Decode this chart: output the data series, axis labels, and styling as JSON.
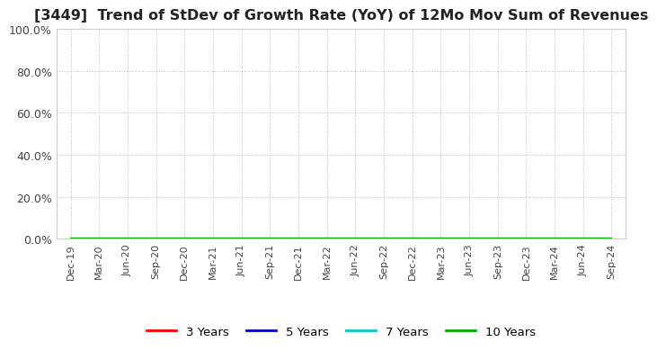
{
  "title": "[3449]  Trend of StDev of Growth Rate (YoY) of 12Mo Mov Sum of Revenues",
  "ylim": [
    0.0,
    1.0
  ],
  "yticks": [
    0.0,
    0.2,
    0.4,
    0.6,
    0.8,
    1.0
  ],
  "ytick_labels": [
    "0.0%",
    "20.0%",
    "40.0%",
    "60.0%",
    "80.0%",
    "100.0%"
  ],
  "xtick_labels": [
    "Dec-19",
    "Mar-20",
    "Jun-20",
    "Sep-20",
    "Dec-20",
    "Mar-21",
    "Jun-21",
    "Sep-21",
    "Dec-21",
    "Mar-22",
    "Jun-22",
    "Sep-22",
    "Dec-22",
    "Mar-23",
    "Jun-23",
    "Sep-23",
    "Dec-23",
    "Mar-24",
    "Jun-24",
    "Sep-24"
  ],
  "legend_labels": [
    "3 Years",
    "5 Years",
    "7 Years",
    "10 Years"
  ],
  "legend_colors": [
    "#ff0000",
    "#0000cc",
    "#00cccc",
    "#00aa00"
  ],
  "background_color": "#ffffff",
  "plot_bg_color": "#ffffff",
  "grid_color": "#bbbbbb",
  "title_fontsize": 11.5,
  "series_3y": [
    0,
    0,
    0,
    0,
    0,
    0,
    0,
    0,
    0,
    0,
    0,
    0,
    0,
    0,
    0,
    0,
    0,
    0,
    0,
    0
  ],
  "series_5y": [
    0,
    0,
    0,
    0,
    0,
    0,
    0,
    0,
    0,
    0,
    0,
    0,
    0,
    0,
    0,
    0,
    0,
    0,
    0,
    0
  ],
  "series_7y": [
    0,
    0,
    0,
    0,
    0,
    0,
    0,
    0,
    0,
    0,
    0,
    0,
    0,
    0,
    0,
    0,
    0,
    0,
    0,
    0
  ],
  "series_10y": [
    0,
    0,
    0,
    0,
    0,
    0,
    0,
    0,
    0,
    0,
    0,
    0,
    0,
    0,
    0,
    0,
    0,
    0,
    0,
    0
  ]
}
